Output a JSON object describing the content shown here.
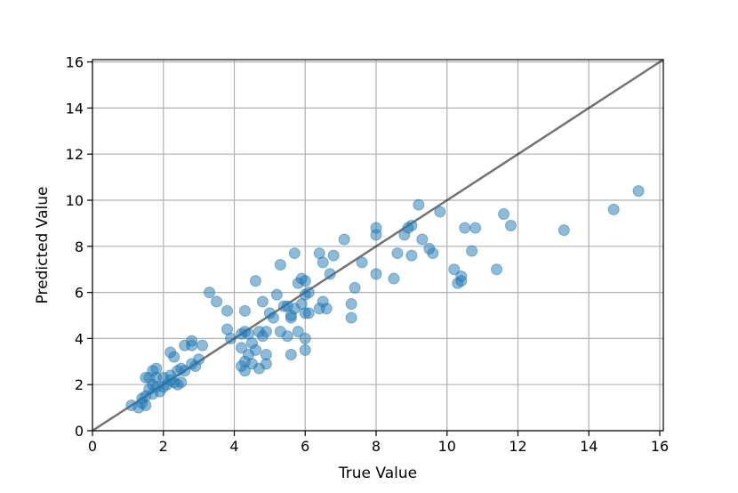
{
  "chart_data": {
    "type": "scatter",
    "title": "",
    "xlabel": "True Value",
    "ylabel": "Predicted Value",
    "xlim": [
      0,
      16.1
    ],
    "ylim": [
      0,
      16.1
    ],
    "xticks": [
      0,
      2,
      4,
      6,
      8,
      10,
      12,
      14,
      16
    ],
    "yticks": [
      0,
      2,
      4,
      6,
      8,
      10,
      12,
      14,
      16
    ],
    "grid": true,
    "point_color": "#1f77b4",
    "reference_line": {
      "x": [
        0,
        16.1
      ],
      "y": [
        0,
        16.1
      ],
      "color": "#000000"
    },
    "series": [
      {
        "points": [
          [
            1.1,
            1.1
          ],
          [
            1.3,
            1.0
          ],
          [
            1.4,
            1.2
          ],
          [
            1.4,
            1.4
          ],
          [
            1.5,
            1.1
          ],
          [
            1.5,
            1.5
          ],
          [
            1.5,
            2.3
          ],
          [
            1.6,
            1.8
          ],
          [
            1.6,
            2.3
          ],
          [
            1.7,
            1.6
          ],
          [
            1.7,
            2.0
          ],
          [
            1.7,
            2.6
          ],
          [
            1.8,
            2.3
          ],
          [
            1.8,
            2.7
          ],
          [
            1.8,
            1.9
          ],
          [
            1.9,
            1.7
          ],
          [
            2.0,
            2.3
          ],
          [
            2.0,
            1.9
          ],
          [
            2.1,
            2.0
          ],
          [
            2.2,
            3.4
          ],
          [
            2.2,
            2.4
          ],
          [
            2.2,
            2.2
          ],
          [
            2.3,
            3.2
          ],
          [
            2.3,
            2.1
          ],
          [
            2.4,
            2.6
          ],
          [
            2.4,
            2.0
          ],
          [
            2.5,
            2.7
          ],
          [
            2.5,
            2.1
          ],
          [
            2.6,
            2.6
          ],
          [
            2.6,
            3.7
          ],
          [
            2.8,
            3.7
          ],
          [
            2.8,
            3.9
          ],
          [
            2.8,
            2.9
          ],
          [
            2.9,
            2.8
          ],
          [
            3.0,
            3.1
          ],
          [
            3.1,
            3.7
          ],
          [
            3.3,
            6.0
          ],
          [
            3.5,
            5.6
          ],
          [
            3.8,
            4.4
          ],
          [
            3.8,
            5.2
          ],
          [
            3.9,
            4.0
          ],
          [
            4.2,
            4.2
          ],
          [
            4.2,
            2.8
          ],
          [
            4.2,
            3.6
          ],
          [
            4.3,
            4.3
          ],
          [
            4.3,
            5.2
          ],
          [
            4.3,
            2.6
          ],
          [
            4.3,
            3.0
          ],
          [
            4.4,
            4.2
          ],
          [
            4.4,
            3.3
          ],
          [
            4.5,
            3.8
          ],
          [
            4.5,
            2.9
          ],
          [
            4.6,
            6.5
          ],
          [
            4.6,
            3.5
          ],
          [
            4.7,
            4.3
          ],
          [
            4.7,
            2.7
          ],
          [
            4.8,
            4.1
          ],
          [
            4.8,
            5.6
          ],
          [
            4.9,
            3.3
          ],
          [
            4.9,
            2.9
          ],
          [
            4.9,
            4.3
          ],
          [
            5.0,
            5.1
          ],
          [
            5.1,
            4.9
          ],
          [
            5.2,
            5.9
          ],
          [
            5.3,
            7.2
          ],
          [
            5.3,
            4.3
          ],
          [
            5.4,
            5.4
          ],
          [
            5.5,
            5.4
          ],
          [
            5.5,
            4.1
          ],
          [
            5.6,
            3.3
          ],
          [
            5.6,
            4.9
          ],
          [
            5.6,
            5.0
          ],
          [
            5.7,
            7.7
          ],
          [
            5.7,
            5.3
          ],
          [
            5.8,
            6.4
          ],
          [
            5.8,
            4.3
          ],
          [
            5.9,
            6.6
          ],
          [
            5.9,
            5.5
          ],
          [
            6.0,
            5.9
          ],
          [
            6.0,
            6.5
          ],
          [
            6.0,
            4.0
          ],
          [
            6.0,
            5.1
          ],
          [
            6.0,
            3.5
          ],
          [
            6.1,
            6.0
          ],
          [
            6.1,
            5.1
          ],
          [
            6.4,
            7.7
          ],
          [
            6.4,
            5.3
          ],
          [
            6.5,
            5.6
          ],
          [
            6.5,
            7.3
          ],
          [
            6.6,
            5.3
          ],
          [
            6.7,
            6.8
          ],
          [
            6.8,
            7.6
          ],
          [
            7.1,
            8.3
          ],
          [
            7.3,
            4.9
          ],
          [
            7.3,
            5.5
          ],
          [
            7.4,
            6.2
          ],
          [
            7.6,
            7.3
          ],
          [
            8.0,
            8.8
          ],
          [
            8.0,
            8.5
          ],
          [
            8.0,
            6.8
          ],
          [
            8.5,
            6.6
          ],
          [
            8.6,
            7.7
          ],
          [
            8.8,
            8.5
          ],
          [
            8.9,
            8.8
          ],
          [
            9.0,
            8.9
          ],
          [
            9.0,
            7.6
          ],
          [
            9.2,
            9.8
          ],
          [
            9.3,
            8.3
          ],
          [
            9.5,
            7.9
          ],
          [
            9.6,
            7.7
          ],
          [
            9.8,
            9.5
          ],
          [
            10.2,
            7.0
          ],
          [
            10.3,
            6.4
          ],
          [
            10.4,
            6.5
          ],
          [
            10.4,
            6.7
          ],
          [
            10.5,
            8.8
          ],
          [
            10.7,
            7.8
          ],
          [
            10.8,
            8.8
          ],
          [
            11.4,
            7.0
          ],
          [
            11.6,
            9.4
          ],
          [
            11.8,
            8.9
          ],
          [
            13.3,
            8.7
          ],
          [
            14.7,
            9.6
          ],
          [
            15.4,
            10.4
          ]
        ]
      }
    ]
  }
}
